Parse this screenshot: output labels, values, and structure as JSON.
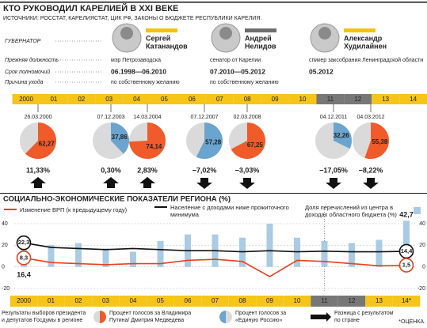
{
  "header": {
    "title": "КТО РУКОВОДИЛ КАРЕЛИЕЙ В XXI ВЕКЕ",
    "sources": "ИСТОЧНИКИ: РОССТАТ, КАРЕЛИЯСТАТ, ЦИК РФ, ЗАКОНЫ О БЮДЖЕТЕ РЕСПУБЛИКИ КАРЕЛИЯ."
  },
  "governors": {
    "row_labels": [
      "ГУБЕРНАТОР",
      "Прежняя должность",
      "Срок полномочий",
      "Причина ухода"
    ],
    "items": [
      {
        "first_name": "Сергей",
        "last_name": "Катанандов",
        "position": "мэр Петрозаводска",
        "term": "06.1998—06.2010",
        "reason": "по собственному желанию",
        "color": "#f5c200"
      },
      {
        "first_name": "Андрей",
        "last_name": "Нелидов",
        "position": "сенатор от Карелии",
        "term": "07.2010—05.2012",
        "reason": "по собственному желанию",
        "color": "#6d6d6d"
      },
      {
        "first_name": "Александр",
        "last_name": "Худилайнен",
        "position": "спикер заксобрания Ленинградской области",
        "term": "05.2012",
        "color": "#f5c200"
      }
    ]
  },
  "timeline": {
    "years": [
      "2000",
      "01",
      "02",
      "03",
      "04",
      "05",
      "06",
      "07",
      "08",
      "09",
      "10",
      "11",
      "12",
      "13",
      "14"
    ],
    "colors": [
      "#f5c518",
      "#f5c518",
      "#f5c518",
      "#f5c518",
      "#f5c518",
      "#f5c518",
      "#f5c518",
      "#f5c518",
      "#f5c518",
      "#f5c518",
      "#f5c518",
      "#777777",
      "#777777",
      "#f5c518",
      "#f5c518"
    ]
  },
  "elections": [
    {
      "date": "26.03.2000",
      "value": 62.27,
      "value_label": "62,27",
      "color": "#f15a29",
      "diff": 11.33,
      "diff_label": "11,33%"
    },
    {
      "date": "07.12.2003",
      "value": 37.86,
      "value_label": "37,86",
      "color": "#6aa4cf",
      "diff": 0.3,
      "diff_label": "0,30%"
    },
    {
      "date": "14.03.2004",
      "value": 74.14,
      "value_label": "74,14",
      "color": "#f15a29",
      "diff": 2.83,
      "diff_label": "2,83%"
    },
    {
      "date": "07.12.2007",
      "value": 57.28,
      "value_label": "57,28",
      "color": "#6aa4cf",
      "diff": -7.02,
      "diff_label": "−7,02%"
    },
    {
      "date": "02.03.2008",
      "value": 67.25,
      "value_label": "67,25",
      "color": "#f15a29",
      "diff": -3.03,
      "diff_label": "−3,03%"
    },
    {
      "date": "04.12.2011",
      "value": 32.26,
      "value_label": "32,26",
      "color": "#6aa4cf",
      "diff": -17.05,
      "diff_label": "−17,05%"
    },
    {
      "date": "04.03.2012",
      "value": 55.38,
      "value_label": "55,38",
      "color": "#f15a29",
      "diff": -8.22,
      "diff_label": "−8,22%"
    }
  ],
  "chart_data": {
    "type": "combo",
    "title": "СОЦИАЛЬНО-ЭКОНОМИЧЕСКИЕ ПОКАЗАТЕЛИ РЕГИОНА (%)",
    "categories": [
      "2000",
      "01",
      "02",
      "03",
      "04",
      "05",
      "06",
      "07",
      "08",
      "09",
      "10",
      "11",
      "12",
      "13",
      "14*"
    ],
    "category_colors": [
      "#f5c518",
      "#f5c518",
      "#f5c518",
      "#f5c518",
      "#f5c518",
      "#f5c518",
      "#f5c518",
      "#f5c518",
      "#f5c518",
      "#f5c518",
      "#f5c518",
      "#777777",
      "#777777",
      "#f5c518",
      "#f5c518"
    ],
    "ylim": [
      -22,
      46
    ],
    "yticks": [
      -20,
      0,
      20,
      40
    ],
    "grid": true,
    "series": [
      {
        "name": "Доля перечислений из центра в доходах областного бюджета (%)",
        "color": "#a9cbe4",
        "kind": "bar",
        "values": [
          16.4,
          20,
          22,
          17,
          14,
          24,
          30,
          30,
          27,
          40,
          27,
          24,
          22,
          25,
          42.7
        ],
        "value_labels": [
          "16,4",
          null,
          null,
          null,
          null,
          null,
          null,
          null,
          null,
          null,
          null,
          null,
          null,
          null,
          "42,7"
        ]
      },
      {
        "name": "Население с доходами ниже прожиточного минимума",
        "color": "#111111",
        "kind": "line",
        "values": [
          22.3,
          18,
          17,
          16,
          17,
          16,
          15,
          15,
          14,
          15,
          14,
          14.5,
          14,
          14,
          14.4
        ],
        "value_labels": [
          "22,3",
          null,
          null,
          null,
          null,
          null,
          null,
          null,
          null,
          null,
          null,
          null,
          null,
          null,
          "14,4"
        ]
      },
      {
        "name": "Изменение ВРП (к предыдущему году)",
        "color": "#e8401c",
        "kind": "line",
        "values": [
          8.3,
          4,
          3,
          2,
          3,
          3,
          6,
          7,
          5,
          -9,
          6,
          5,
          3,
          1,
          1.5
        ],
        "value_labels": [
          "8,3",
          null,
          null,
          null,
          null,
          null,
          null,
          null,
          null,
          null,
          null,
          null,
          null,
          null,
          "1,5"
        ]
      }
    ],
    "note": "*ОЦЕНКА."
  },
  "footer": {
    "results": "Результаты выборов президента и депутатов Госдумы в регионе",
    "president": "Процент голосов за Владимира Путина/ Дмитрия Медведева",
    "party": "Процент голосов за «Единую Россию»",
    "diff": "Разница с результатом по стране"
  }
}
